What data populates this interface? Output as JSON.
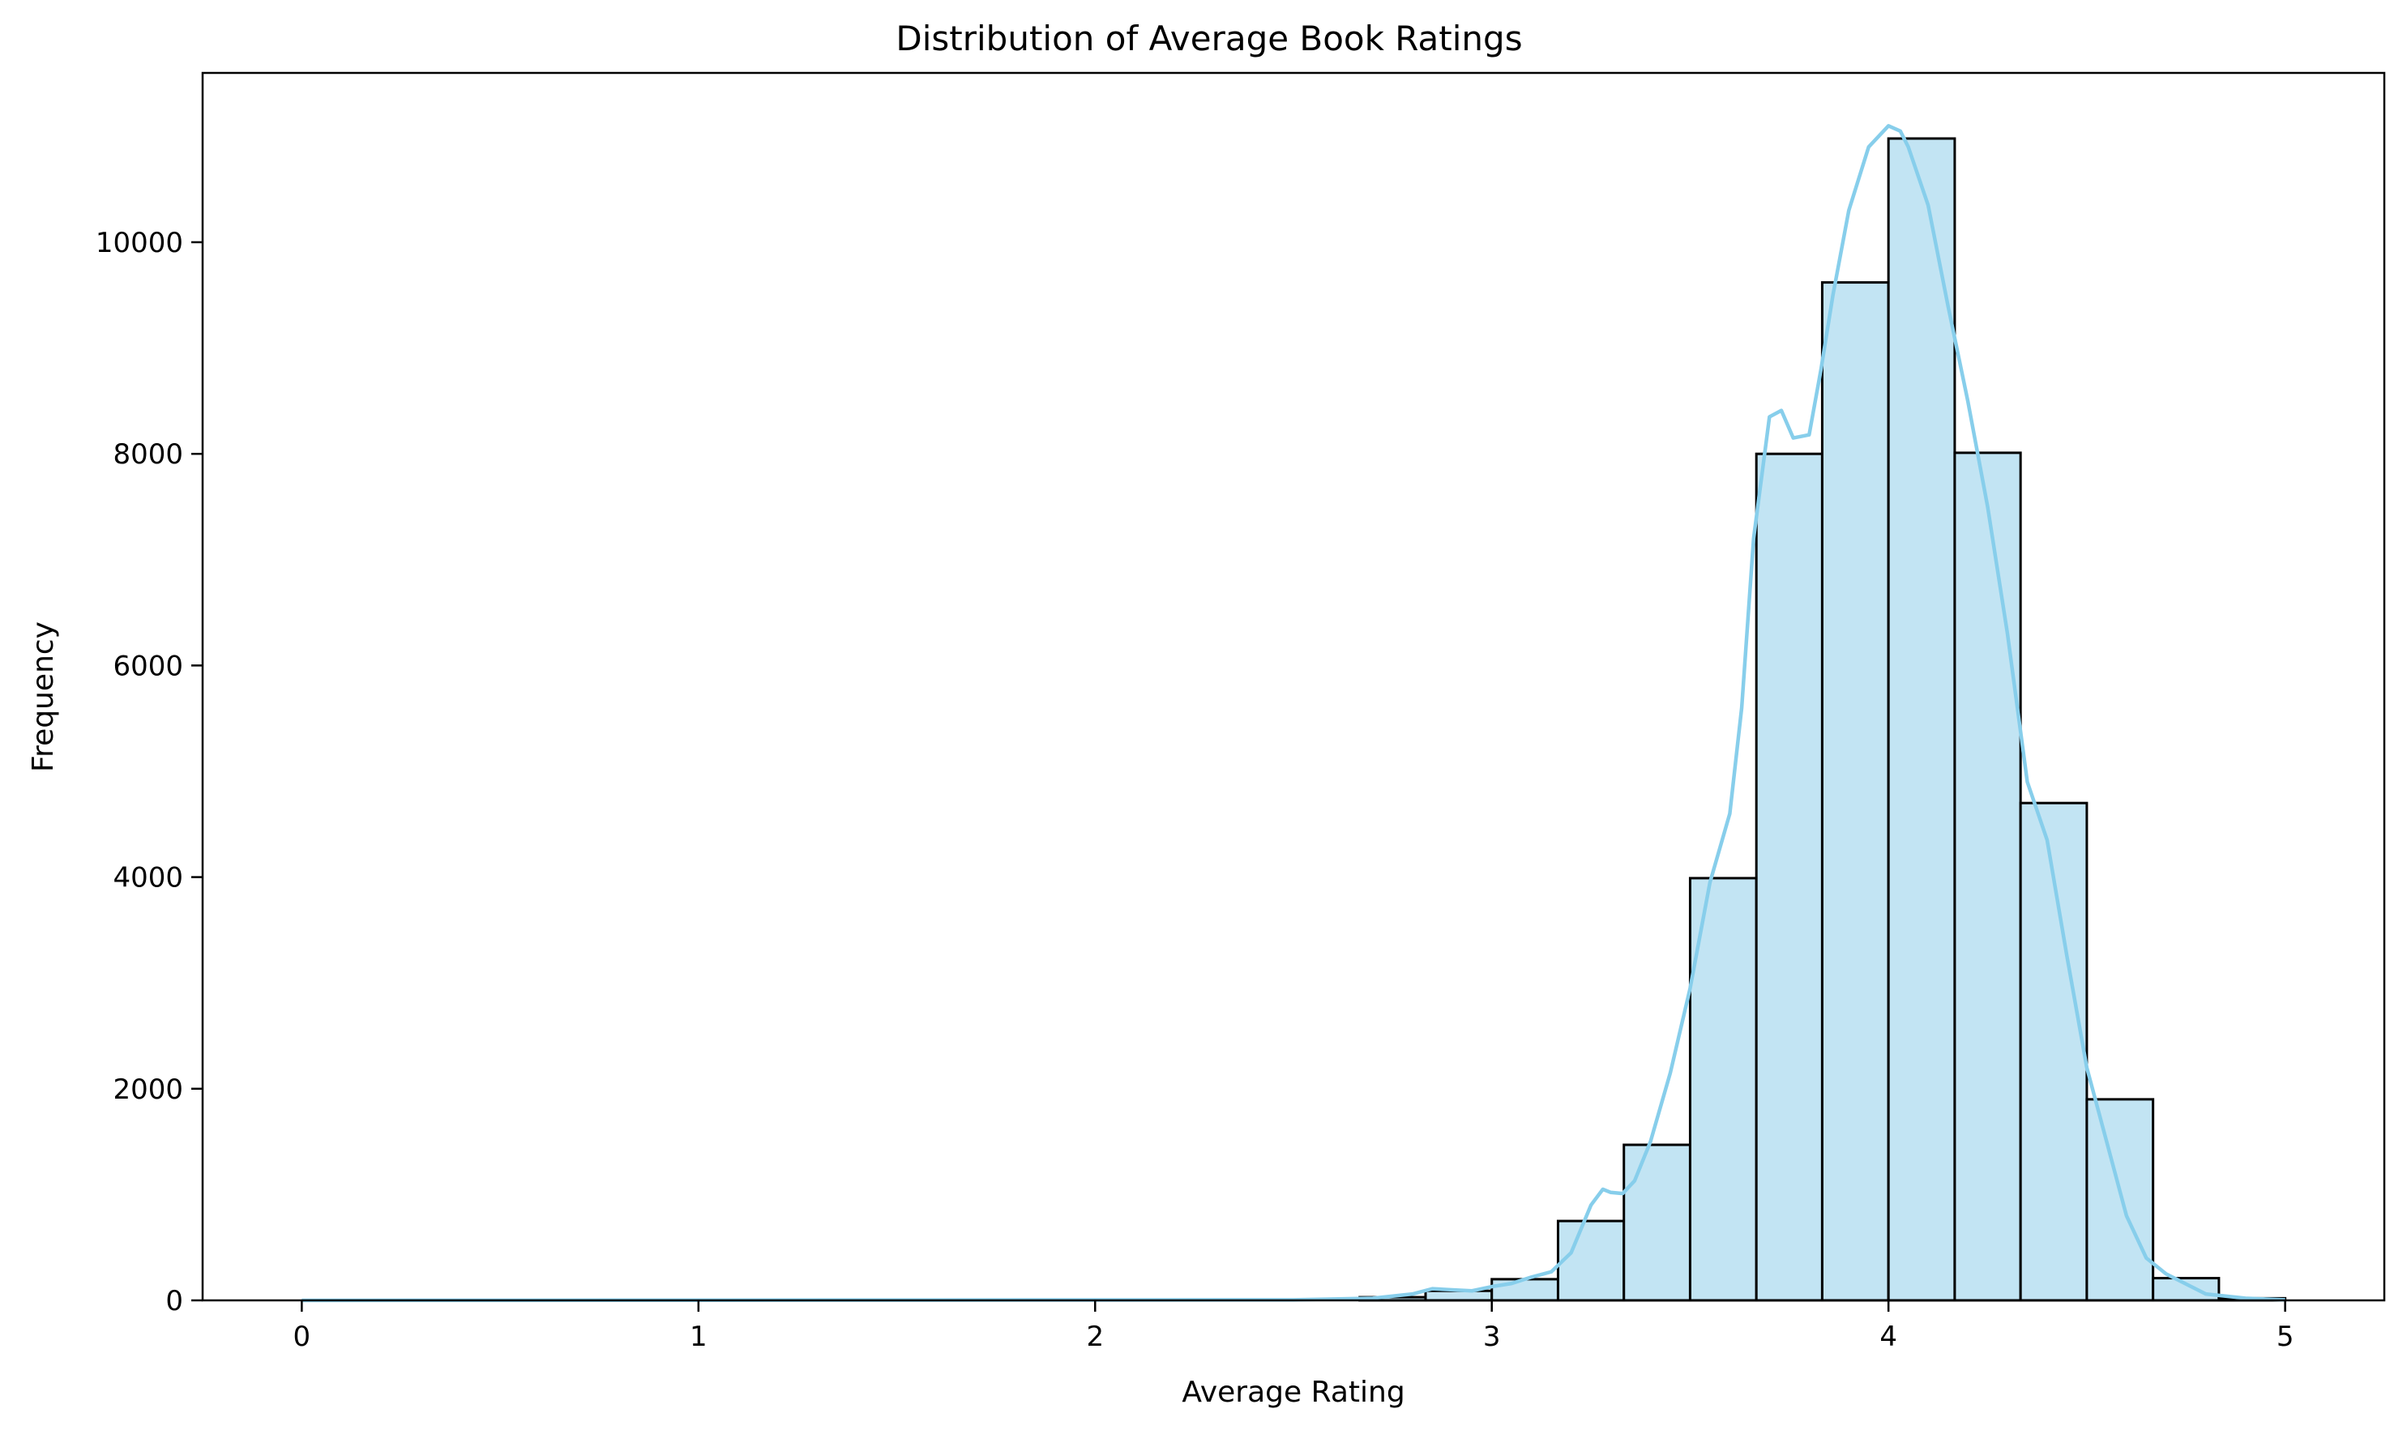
{
  "chart_data": {
    "type": "bar",
    "title": "Distribution of Average Book Ratings",
    "xlabel": "Average Rating",
    "ylabel": "Frequency",
    "xlim": [
      -0.25,
      5.25
    ],
    "ylim": [
      0,
      11600
    ],
    "x_ticks": [
      0,
      1,
      2,
      3,
      4,
      5
    ],
    "y_ticks": [
      0,
      2000,
      4000,
      6000,
      8000,
      10000
    ],
    "grid": false,
    "bins": [
      {
        "x0": 2.667,
        "x1": 2.833,
        "value": 30
      },
      {
        "x0": 2.833,
        "x1": 3.0,
        "value": 90
      },
      {
        "x0": 3.0,
        "x1": 3.167,
        "value": 200
      },
      {
        "x0": 3.167,
        "x1": 3.333,
        "value": 750
      },
      {
        "x0": 3.333,
        "x1": 3.5,
        "value": 1470
      },
      {
        "x0": 3.5,
        "x1": 3.667,
        "value": 3990
      },
      {
        "x0": 3.667,
        "x1": 3.833,
        "value": 8000
      },
      {
        "x0": 3.833,
        "x1": 4.0,
        "value": 9620
      },
      {
        "x0": 4.0,
        "x1": 4.167,
        "value": 10980
      },
      {
        "x0": 4.167,
        "x1": 4.333,
        "value": 8010
      },
      {
        "x0": 4.333,
        "x1": 4.5,
        "value": 4700
      },
      {
        "x0": 4.5,
        "x1": 4.667,
        "value": 1900
      },
      {
        "x0": 4.667,
        "x1": 4.833,
        "value": 210
      },
      {
        "x0": 4.833,
        "x1": 5.0,
        "value": 20
      }
    ],
    "kde": {
      "x": [
        0,
        2.5,
        2.7,
        2.8,
        2.85,
        2.9,
        2.95,
        3.0,
        3.05,
        3.1,
        3.15,
        3.2,
        3.25,
        3.28,
        3.3,
        3.33,
        3.36,
        3.4,
        3.45,
        3.5,
        3.55,
        3.6,
        3.63,
        3.66,
        3.7,
        3.73,
        3.76,
        3.8,
        3.83,
        3.86,
        3.9,
        3.95,
        4.0,
        4.03,
        4.05,
        4.1,
        4.15,
        4.2,
        4.25,
        4.3,
        4.35,
        4.4,
        4.45,
        4.5,
        4.55,
        4.6,
        4.65,
        4.7,
        4.8,
        4.9,
        5.0
      ],
      "y": [
        0,
        5,
        20,
        60,
        110,
        100,
        90,
        130,
        160,
        220,
        270,
        450,
        900,
        1050,
        1020,
        1010,
        1130,
        1500,
        2150,
        2950,
        3950,
        4600,
        5600,
        7200,
        8350,
        8410,
        8150,
        8180,
        8800,
        9500,
        10300,
        10900,
        11100,
        11050,
        10900,
        10350,
        9400,
        8500,
        7500,
        6300,
        4900,
        4350,
        3250,
        2200,
        1500,
        800,
        400,
        250,
        60,
        20,
        5
      ]
    },
    "colors": {
      "bar_fill": "#c2e4f3",
      "bar_edge": "#000000",
      "kde_line": "#87ceeb",
      "axis": "#000000"
    }
  }
}
